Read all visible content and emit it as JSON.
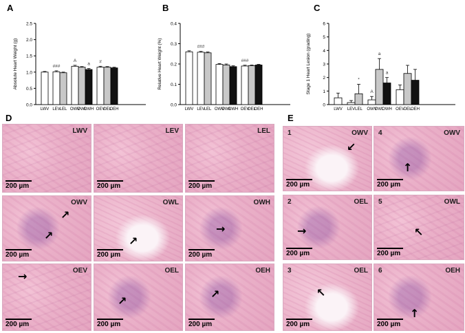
{
  "panels": {
    "A": "A",
    "B": "B",
    "C": "C",
    "D": "D",
    "E": "E"
  },
  "chart_data": [
    {
      "type": "bar",
      "ylabel": "Absolute Heart Weight (g)",
      "ylim": [
        0,
        2.5
      ],
      "yticks": [
        "0.0",
        "0.5",
        "1.0",
        "1.5",
        "2.0",
        "2.5"
      ],
      "groups": [
        {
          "bars": [
            {
              "label": "LWV",
              "value": 1.0,
              "err": 0.02,
              "fill": "#ffffff"
            }
          ]
        },
        {
          "bars": [
            {
              "label": "LEV",
              "value": 1.01,
              "err": 0.03,
              "fill": "#ffffff"
            },
            {
              "label": "LEL",
              "value": 0.98,
              "err": 0.02,
              "fill": "#c8c8c8"
            }
          ]
        },
        {
          "bars": [
            {
              "label": "OWV",
              "value": 1.18,
              "err": 0.03,
              "fill": "#ffffff"
            },
            {
              "label": "OWL",
              "value": 1.15,
              "err": 0.02,
              "fill": "#c8c8c8"
            },
            {
              "label": "OWH",
              "value": 1.08,
              "err": 0.03,
              "fill": "#111111"
            }
          ]
        },
        {
          "bars": [
            {
              "label": "OEV",
              "value": 1.15,
              "err": 0.03,
              "fill": "#ffffff"
            },
            {
              "label": "OEL",
              "value": 1.15,
              "err": 0.02,
              "fill": "#c8c8c8"
            },
            {
              "label": "OEH",
              "value": 1.13,
              "err": 0.02,
              "fill": "#111111"
            }
          ]
        }
      ],
      "annotations": [
        {
          "text": "###",
          "bar": "LEV"
        },
        {
          "text": "#",
          "bar": "OEV"
        },
        {
          "text": "A",
          "bar": "OWV"
        },
        {
          "text": "a",
          "bar": "OWH"
        }
      ]
    },
    {
      "type": "bar",
      "ylabel": "Relative Heart Weight (%)",
      "ylim": [
        0,
        0.4
      ],
      "yticks": [
        "0.0",
        "0.1",
        "0.2",
        "0.3",
        "0.4"
      ],
      "groups": [
        {
          "bars": [
            {
              "label": "LWV",
              "value": 0.26,
              "err": 0.005,
              "fill": "#ffffff"
            }
          ]
        },
        {
          "bars": [
            {
              "label": "LEV",
              "value": 0.258,
              "err": 0.004,
              "fill": "#ffffff"
            },
            {
              "label": "LEL",
              "value": 0.255,
              "err": 0.004,
              "fill": "#c8c8c8"
            }
          ]
        },
        {
          "bars": [
            {
              "label": "OWV",
              "value": 0.198,
              "err": 0.004,
              "fill": "#ffffff"
            },
            {
              "label": "OWL",
              "value": 0.195,
              "err": 0.005,
              "fill": "#c8c8c8"
            },
            {
              "label": "OWH",
              "value": 0.187,
              "err": 0.004,
              "fill": "#111111"
            }
          ]
        },
        {
          "bars": [
            {
              "label": "OEV",
              "value": 0.19,
              "err": 0.004,
              "fill": "#ffffff"
            },
            {
              "label": "OEL",
              "value": 0.192,
              "err": 0.003,
              "fill": "#c8c8c8"
            },
            {
              "label": "OEH",
              "value": 0.195,
              "err": 0.003,
              "fill": "#111111"
            }
          ]
        }
      ],
      "annotations": [
        {
          "text": "###",
          "bar": "LEV"
        },
        {
          "text": "###",
          "bar": "OEV"
        }
      ]
    },
    {
      "type": "bar",
      "ylabel": "Stage 1 Heart Lesion (grading)",
      "ylim": [
        0,
        6
      ],
      "yticks": [
        "0",
        "1",
        "2",
        "3",
        "4",
        "5",
        "6"
      ],
      "groups": [
        {
          "bars": [
            {
              "label": "LWV",
              "value": 0.5,
              "err": 0.35,
              "fill": "#ffffff"
            }
          ]
        },
        {
          "bars": [
            {
              "label": "LEV",
              "value": 0.15,
              "err": 0.15,
              "fill": "#ffffff"
            },
            {
              "label": "LEL",
              "value": 0.8,
              "err": 0.7,
              "fill": "#c8c8c8"
            }
          ]
        },
        {
          "bars": [
            {
              "label": "OWV",
              "value": 0.35,
              "err": 0.25,
              "fill": "#ffffff"
            },
            {
              "label": "OWL",
              "value": 2.6,
              "err": 0.8,
              "fill": "#c8c8c8"
            },
            {
              "label": "OWH",
              "value": 1.6,
              "err": 0.4,
              "fill": "#111111"
            }
          ]
        },
        {
          "bars": [
            {
              "label": "OEV",
              "value": 1.1,
              "err": 0.35,
              "fill": "#ffffff"
            },
            {
              "label": "OEL",
              "value": 2.3,
              "err": 0.6,
              "fill": "#c8c8c8"
            },
            {
              "label": "OEH",
              "value": 1.8,
              "err": 0.8,
              "fill": "#111111"
            }
          ]
        }
      ],
      "annotations": [
        {
          "text": "*",
          "bar": "LEL"
        },
        {
          "text": "A",
          "bar": "OWV"
        },
        {
          "text": "a",
          "bar": "OWL"
        },
        {
          "text": "a",
          "bar": "OWH"
        }
      ]
    }
  ],
  "micrographs": {
    "scale_label": "200 µm",
    "D": [
      {
        "tag": "LWV"
      },
      {
        "tag": "LEV"
      },
      {
        "tag": "LEL"
      },
      {
        "tag": "OWV"
      },
      {
        "tag": "OWL"
      },
      {
        "tag": "OWH"
      },
      {
        "tag": "OEV"
      },
      {
        "tag": "OEL"
      },
      {
        "tag": "OEH"
      }
    ],
    "E": [
      {
        "num": "1",
        "tag": "OWV"
      },
      {
        "num": "4",
        "tag": "OWV"
      },
      {
        "num": "2",
        "tag": "OEL"
      },
      {
        "num": "5",
        "tag": "OWL"
      },
      {
        "num": "3",
        "tag": "OEL"
      },
      {
        "num": "6",
        "tag": "OEH"
      }
    ]
  }
}
